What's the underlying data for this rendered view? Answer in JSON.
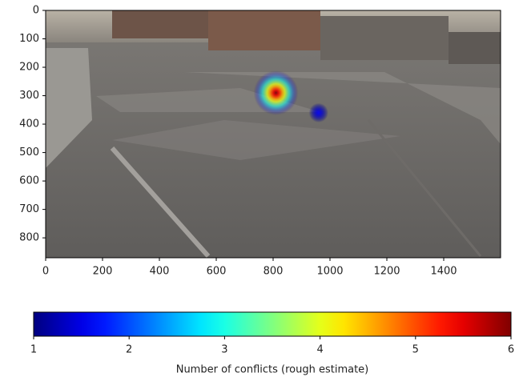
{
  "chart_data": {
    "type": "heatmap",
    "x": [
      810,
      960
    ],
    "y": [
      290,
      360
    ],
    "values": [
      6,
      1.6
    ],
    "xlim": [
      0,
      1600
    ],
    "ylim": [
      870,
      0
    ],
    "xticks": [
      0,
      200,
      400,
      600,
      800,
      1000,
      1200,
      1400
    ],
    "yticks": [
      0,
      100,
      200,
      300,
      400,
      500,
      600,
      700,
      800
    ],
    "colormap": "jet",
    "colorbar": {
      "label": "Number of conflicts (rough estimate)",
      "lim": [
        1,
        6
      ],
      "ticks": [
        1,
        2,
        3,
        4,
        5,
        6
      ]
    }
  }
}
